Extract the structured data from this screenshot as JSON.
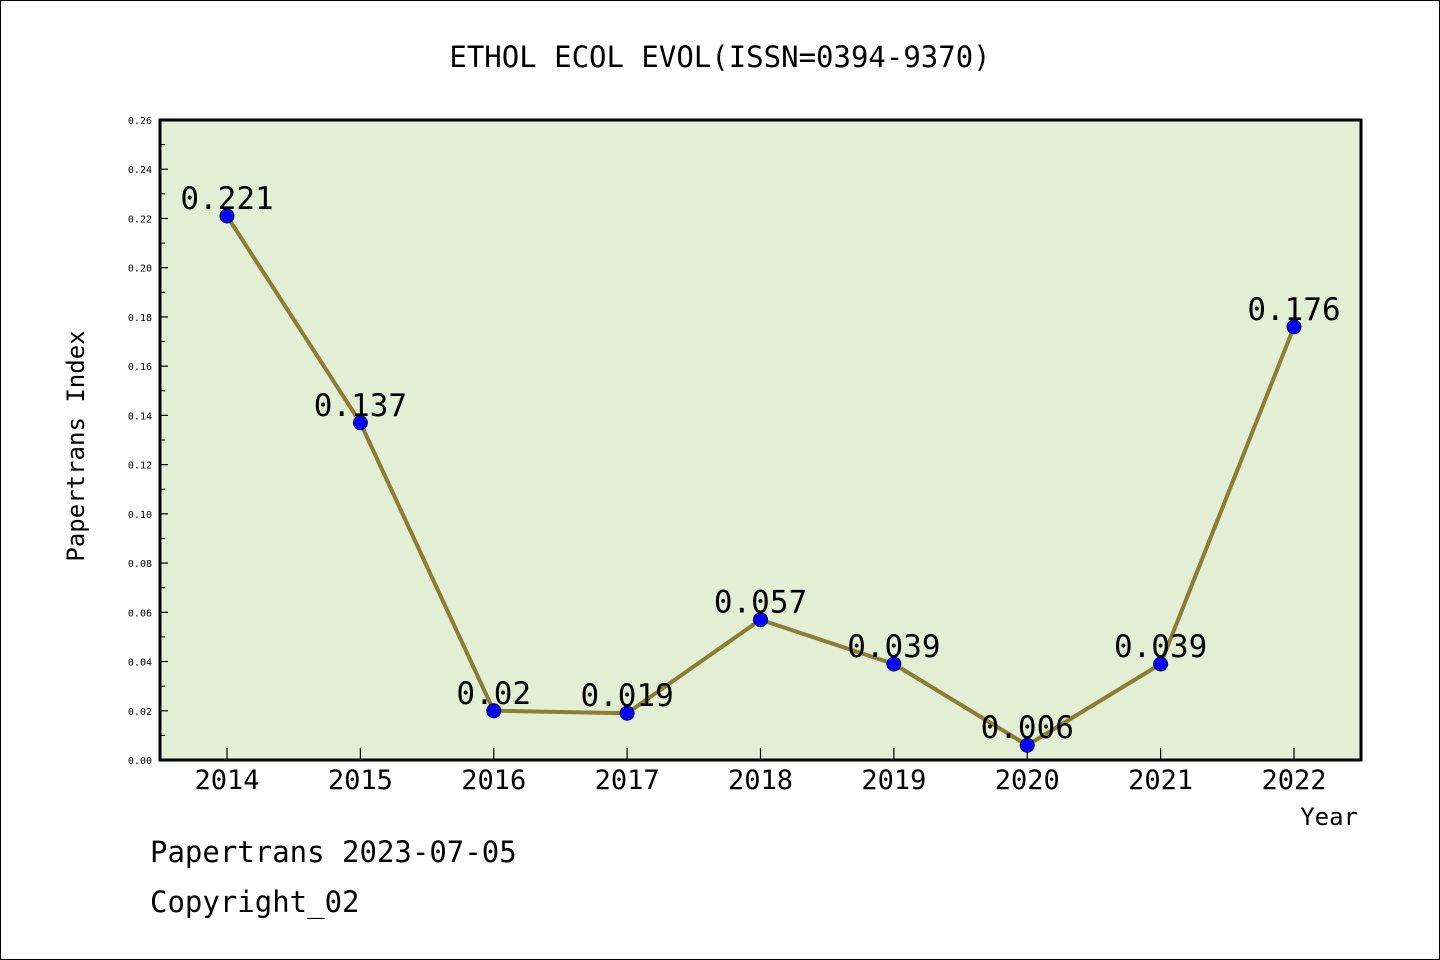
{
  "chart_data": {
    "type": "line",
    "title": "ETHOL ECOL EVOL(ISSN=0394-9370)",
    "xlabel": "Year",
    "ylabel": "Papertrans Index",
    "categories": [
      "2014",
      "2015",
      "2016",
      "2017",
      "2018",
      "2019",
      "2020",
      "2021",
      "2022"
    ],
    "values": [
      0.221,
      0.137,
      0.02,
      0.019,
      0.057,
      0.039,
      0.006,
      0.039,
      0.176
    ],
    "value_labels": [
      "0.221",
      "0.137",
      "0.02",
      "0.019",
      "0.057",
      "0.039",
      "0.006",
      "0.039",
      "0.176"
    ],
    "ylim": [
      0,
      0.26
    ],
    "yticks": [
      "0.00",
      "0.02",
      "0.04",
      "0.06",
      "0.08",
      "0.10",
      "0.12",
      "0.14",
      "0.16",
      "0.18",
      "0.20",
      "0.22",
      "0.24",
      "0.26"
    ],
    "grid": false,
    "colors": {
      "plot_background": "#e2efd4",
      "line": "#8b7d33",
      "marker": "#0000ff"
    }
  },
  "footer": {
    "line1": "Papertrans 2023-07-05",
    "line2": "Copyright_02"
  }
}
